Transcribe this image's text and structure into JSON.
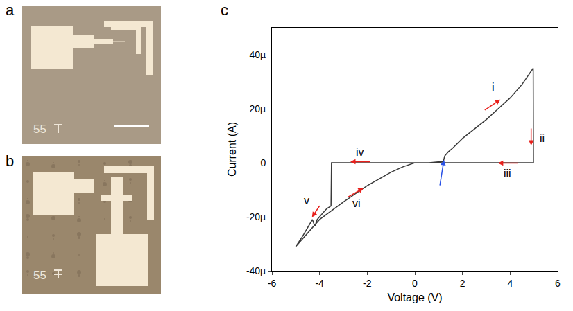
{
  "panels": {
    "a": {
      "letter": "a",
      "text": "55"
    },
    "b": {
      "letter": "b",
      "text": "55"
    }
  },
  "chart_data": {
    "type": "line",
    "letter": "c",
    "x_label": "Voltage (V)",
    "y_label": "Current (A)",
    "color": "#3a3a3a",
    "grid": false,
    "x": [
      0,
      0.6,
      1.2,
      1.25,
      1.4,
      1.6,
      2.0,
      2.5,
      3.0,
      3.5,
      4.0,
      4.5,
      4.9,
      4.97,
      4.98,
      4.0,
      2.0,
      0,
      -2.0,
      -3.5,
      -3.52,
      -3.7,
      -3.9,
      -4.0,
      -4.1,
      -4.2,
      -4.3,
      -4.4,
      -4.5,
      -4.7,
      -5.0,
      -4.5,
      -4.0,
      -3.0,
      -2.0,
      -1.0,
      -0.5,
      0
    ],
    "values": [
      0,
      0,
      5e-07,
      2.5e-06,
      4e-06,
      5.5e-06,
      9e-06,
      1.25e-05,
      1.6e-05,
      2e-05,
      2.4e-05,
      2.9e-05,
      3.4e-05,
      3.5e-05,
      0,
      0,
      0,
      0,
      0,
      0,
      -1.6e-05,
      -1.7e-05,
      -1.9e-05,
      -2e-05,
      -2.1e-05,
      -2.35e-05,
      -2.1e-05,
      -2.25e-05,
      -2.4e-05,
      -2.7e-05,
      -3.1e-05,
      -2.6e-05,
      -2.1e-05,
      -1.45e-05,
      -8.5e-06,
      -3.5e-06,
      -1.5e-06,
      0
    ],
    "xlim": [
      -6,
      6
    ],
    "xticks": [
      -6,
      -4,
      -2,
      0,
      2,
      4,
      6
    ],
    "ylim": [
      -4e-05,
      5e-05
    ],
    "yticks": [
      {
        "value": -4e-05,
        "label": "-40µ"
      },
      {
        "value": -2e-05,
        "label": "-20µ"
      },
      0,
      {
        "value": 2e-05,
        "label": "20µ"
      },
      {
        "value": 4e-05,
        "label": "40µ"
      }
    ],
    "annotations": [
      {
        "text": "i",
        "x": 3.3,
        "y": 2.8e-05,
        "color": "#e8201c"
      },
      {
        "text": "ii",
        "x": 5.35,
        "y": 9e-06,
        "color": "#e8201c"
      },
      {
        "text": "iii",
        "x": 3.9,
        "y": -4e-06,
        "color": "#e8201c"
      },
      {
        "text": "iv",
        "x": -2.3,
        "y": 4e-06,
        "color": "#e8201c"
      },
      {
        "text": "v",
        "x": -4.55,
        "y": -1.4e-05,
        "color": "#e8201c"
      },
      {
        "text": "vi",
        "x": -2.45,
        "y": -1.5e-05,
        "color": "#e8201c"
      }
    ],
    "arrow_mark": {
      "x": 1.22,
      "y": 1e-06,
      "color": "#2a52e6"
    }
  }
}
